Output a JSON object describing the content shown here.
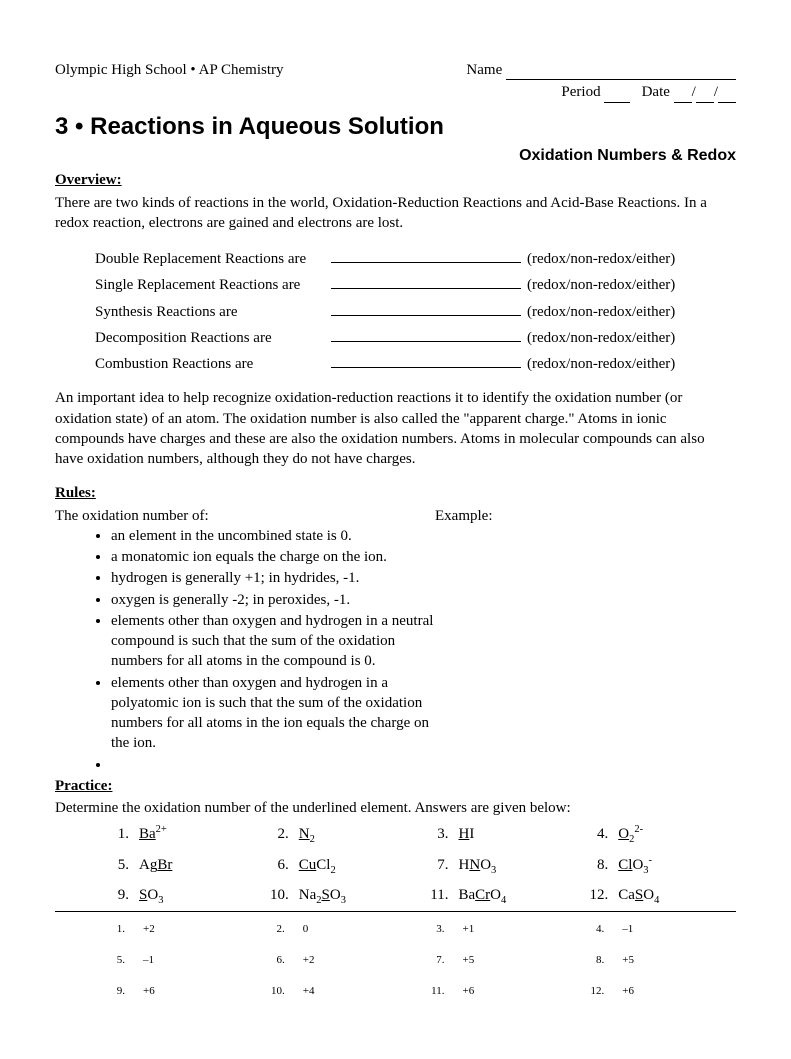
{
  "header": {
    "school": "Olympic High School",
    "bullet": "•",
    "course": "AP Chemistry",
    "name_label": "Name",
    "period_label": "Period",
    "date_label": "Date",
    "date_sep": "/"
  },
  "title": {
    "number": "3",
    "bullet": "•",
    "text": "Reactions in Aqueous Solution",
    "subtitle": "Oxidation Numbers & Redox"
  },
  "overview": {
    "heading": "Overview:",
    "p1": "There are two kinds of reactions in the world, Oxidation-Reduction Reactions and Acid-Base Reactions. In a redox reaction, electrons are gained and electrons are lost.",
    "reactions": [
      "Double Replacement Reactions are",
      "Single Replacement Reactions are",
      "Synthesis Reactions are",
      "Decomposition Reactions are",
      "Combustion Reactions are"
    ],
    "option_text": "(redox/non-redox/either)",
    "p2": "An important idea to help recognize oxidation-reduction reactions it to identify the oxidation number (or oxidation state) of an atom.  The oxidation number is also called the \"apparent charge.\"  Atoms in ionic compounds have charges and these are also the oxidation numbers.  Atoms in molecular compounds can also have oxidation numbers, although they do not have charges."
  },
  "rules": {
    "heading": "Rules:",
    "intro": "The oxidation number of:",
    "example_label": "Example:",
    "items": [
      "an element in the uncombined state is 0.",
      "a monatomic ion equals the charge on the ion.",
      "hydrogen is generally +1; in hydrides, -1.",
      "oxygen is generally -2; in peroxides, -1.",
      "elements other than oxygen and hydrogen in a neutral compound is such that the sum of the oxidation numbers for all atoms in the compound is 0.",
      "elements other than oxygen and hydrogen in a polyatomic ion is such that the sum of the oxidation numbers for all atoms in the ion equals the charge on the ion.",
      ""
    ]
  },
  "practice": {
    "heading": "Practice:",
    "intro": "Determine the oxidation number of the underlined element.  Answers are given below:",
    "items": [
      {
        "n": "1.",
        "html": "<span class='u'>Ba</span><sup>2+</sup>"
      },
      {
        "n": "2.",
        "html": "<span class='u'>N</span><sub>2</sub>"
      },
      {
        "n": "3.",
        "html": "<span class='u'>H</span>I"
      },
      {
        "n": "4.",
        "html": "<span class='u'>O</span><sub>2</sub><sup>2-</sup>"
      },
      {
        "n": "5.",
        "html": "Ag<span class='u'>Br</span>"
      },
      {
        "n": "6.",
        "html": "<span class='u'>Cu</span>Cl<sub>2</sub>"
      },
      {
        "n": "7.",
        "html": "H<span class='u'>N</span>O<sub>3</sub>"
      },
      {
        "n": "8.",
        "html": "<span class='u'>Cl</span>O<sub>3</sub><sup>-</sup>"
      },
      {
        "n": "9.",
        "html": "<span class='u'>S</span>O<sub>3</sub>"
      },
      {
        "n": "10.",
        "html": "Na<sub>2</sub><span class='u'>S</span>O<sub>3</sub>"
      },
      {
        "n": "11.",
        "html": "Ba<span class='u'>Cr</span>O<sub>4</sub>"
      },
      {
        "n": "12.",
        "html": "Ca<span class='u'>S</span>O<sub>4</sub>"
      }
    ]
  },
  "answers": [
    {
      "n": "1.",
      "v": "+2"
    },
    {
      "n": "2.",
      "v": "0"
    },
    {
      "n": "3.",
      "v": "+1"
    },
    {
      "n": "4.",
      "v": "–1"
    },
    {
      "n": "5.",
      "v": "–1"
    },
    {
      "n": "6.",
      "v": "+2"
    },
    {
      "n": "7.",
      "v": "+5"
    },
    {
      "n": "8.",
      "v": "+5"
    },
    {
      "n": "9.",
      "v": "+6"
    },
    {
      "n": "10.",
      "v": "+4"
    },
    {
      "n": "11.",
      "v": "+6"
    },
    {
      "n": "12.",
      "v": "+6"
    }
  ]
}
